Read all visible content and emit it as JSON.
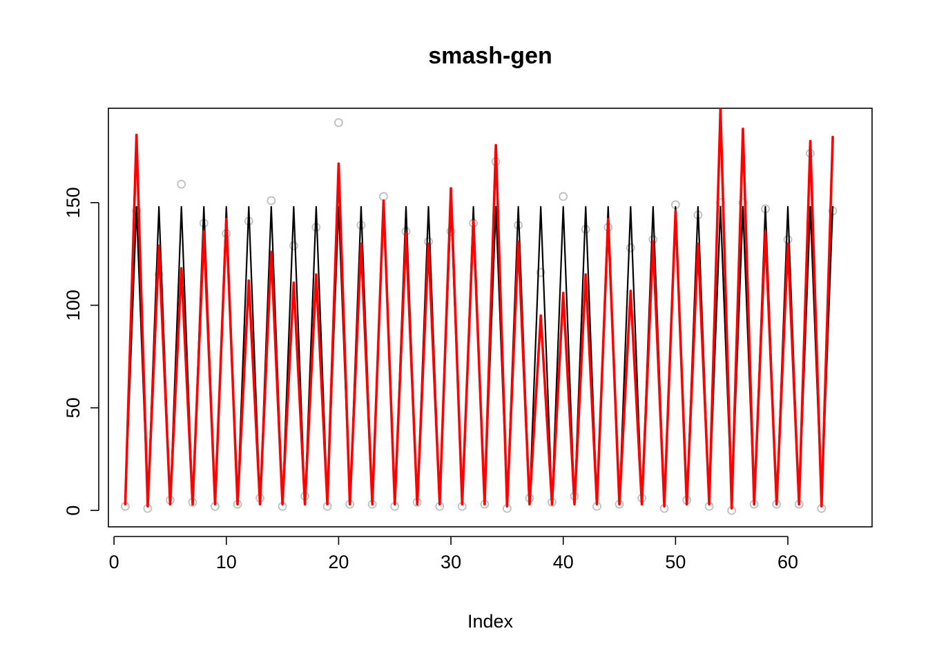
{
  "chart_data": {
    "type": "line",
    "title": "smash-gen",
    "xlabel": "Index",
    "ylabel": "",
    "xlim": [
      -0.5,
      67.5
    ],
    "ylim": [
      -8,
      196
    ],
    "x_ticks": [
      0,
      10,
      20,
      30,
      40,
      50,
      60
    ],
    "y_ticks": [
      0,
      50,
      100,
      150
    ],
    "grid": false,
    "legend": "none",
    "colors": {
      "points": "#bebebe",
      "truth": "#000000",
      "estimate": "#ff0000"
    },
    "x": [
      1,
      2,
      3,
      4,
      5,
      6,
      7,
      8,
      9,
      10,
      11,
      12,
      13,
      14,
      15,
      16,
      17,
      18,
      19,
      20,
      21,
      22,
      23,
      24,
      25,
      26,
      27,
      28,
      29,
      30,
      31,
      32,
      33,
      34,
      35,
      36,
      37,
      38,
      39,
      40,
      41,
      42,
      43,
      44,
      45,
      46,
      47,
      48,
      49,
      50,
      51,
      52,
      53,
      54,
      55,
      56,
      57,
      58,
      59,
      60,
      61,
      62,
      63,
      64
    ],
    "series": [
      {
        "kind": "points",
        "values": [
          2,
          146,
          1,
          115,
          5,
          159,
          4,
          140,
          2,
          135,
          3,
          141,
          6,
          151,
          2,
          129,
          7,
          138,
          2,
          189,
          3,
          139,
          3,
          153,
          2,
          136,
          4,
          131,
          2,
          136,
          2,
          140,
          3,
          170,
          1,
          139,
          6,
          116,
          4,
          153,
          7,
          137,
          2,
          138,
          3,
          128,
          6,
          132,
          1,
          149,
          5,
          144,
          2,
          150,
          0,
          150,
          3,
          147,
          3,
          132,
          3,
          174,
          1,
          146
        ]
      },
      {
        "kind": "line",
        "values": [
          3,
          148,
          3,
          148,
          3,
          148,
          3,
          148,
          3,
          148,
          3,
          148,
          3,
          148,
          3,
          148,
          3,
          148,
          3,
          148,
          3,
          148,
          3,
          148,
          3,
          148,
          3,
          148,
          3,
          148,
          3,
          148,
          3,
          148,
          3,
          148,
          3,
          148,
          3,
          148,
          3,
          148,
          3,
          148,
          3,
          148,
          3,
          148,
          3,
          148,
          3,
          148,
          3,
          148,
          3,
          148,
          3,
          148,
          3,
          148,
          3,
          148,
          3,
          148
        ]
      },
      {
        "kind": "line",
        "values": [
          3,
          183,
          2,
          129,
          3,
          118,
          3,
          136,
          3,
          142,
          3,
          112,
          3,
          126,
          3,
          111,
          3,
          115,
          3,
          169,
          3,
          130,
          3,
          151,
          3,
          135,
          3,
          130,
          3,
          157,
          3,
          141,
          3,
          178,
          2,
          131,
          3,
          95,
          3,
          106,
          3,
          115,
          3,
          142,
          3,
          107,
          3,
          131,
          2,
          146,
          3,
          130,
          3,
          196,
          1,
          186,
          3,
          136,
          3,
          130,
          3,
          180,
          2,
          182
        ]
      }
    ]
  }
}
